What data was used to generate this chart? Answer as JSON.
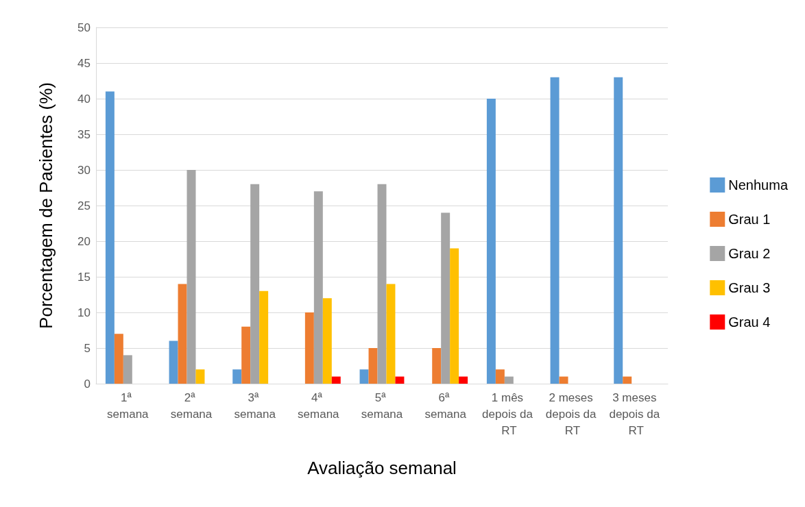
{
  "chart_data": {
    "type": "bar",
    "xlabel": "Avaliação semanal",
    "ylabel": "Porcentagem de Pacientes (%)",
    "categories": [
      "1ª semana",
      "2ª semana",
      "3ª semana",
      "4ª semana",
      "5ª semana",
      "6ª semana",
      "1 mês depois da RT",
      "2 meses depois da RT",
      "3 meses depois da RT"
    ],
    "series": [
      {
        "name": "Nenhuma",
        "color": "#5b9bd5",
        "values": [
          41,
          6,
          2,
          0,
          2,
          0,
          40,
          43,
          43
        ]
      },
      {
        "name": "Grau 1",
        "color": "#ed7d31",
        "values": [
          7,
          14,
          8,
          10,
          5,
          5,
          2,
          1,
          1
        ]
      },
      {
        "name": "Grau 2",
        "color": "#a5a5a5",
        "values": [
          4,
          30,
          28,
          27,
          28,
          24,
          1,
          0,
          0
        ]
      },
      {
        "name": "Grau 3",
        "color": "#ffc000",
        "values": [
          0,
          2,
          13,
          12,
          14,
          19,
          0,
          0,
          0
        ]
      },
      {
        "name": "Grau 4",
        "color": "#ff0000",
        "values": [
          0,
          0,
          0,
          1,
          1,
          1,
          0,
          0,
          0
        ]
      }
    ],
    "ylim": [
      0,
      50
    ],
    "yticks": [
      0,
      5,
      10,
      15,
      20,
      25,
      30,
      35,
      40,
      45,
      50
    ],
    "grid": "y",
    "legend": "right"
  }
}
